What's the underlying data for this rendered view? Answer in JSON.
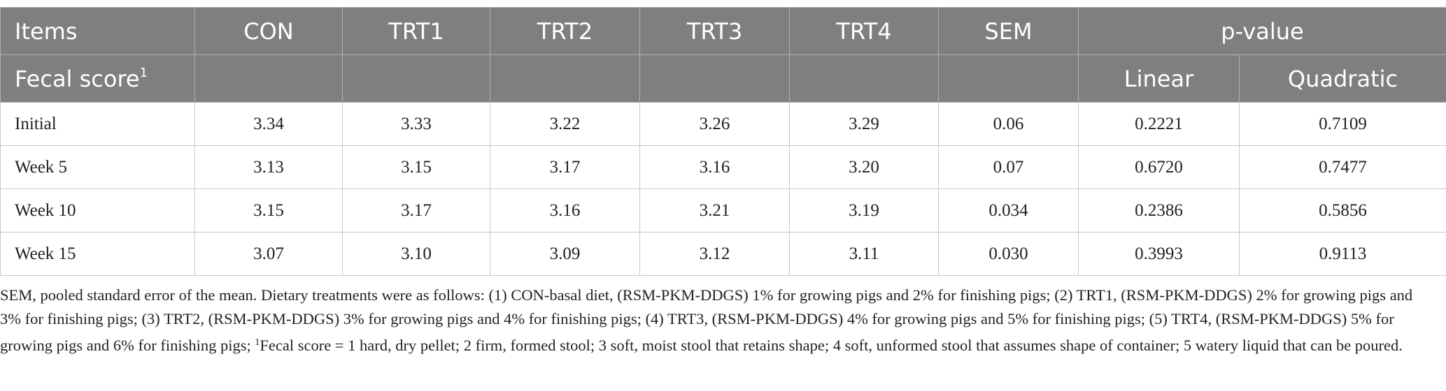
{
  "table": {
    "header": [
      "Items",
      "CON",
      "TRT1",
      "TRT2",
      "TRT3",
      "TRT4",
      "SEM",
      "p-value"
    ],
    "subheader": {
      "label": "Fecal score",
      "label_sup": "1",
      "columns": [
        "Linear",
        "Quadratic"
      ]
    },
    "rows": [
      [
        "Initial",
        "3.34",
        "3.33",
        "3.22",
        "3.26",
        "3.29",
        "0.06",
        "0.2221",
        "0.7109"
      ],
      [
        "Week 5",
        "3.13",
        "3.15",
        "3.17",
        "3.16",
        "3.20",
        "0.07",
        "0.6720",
        "0.7477"
      ],
      [
        "Week 10",
        "3.15",
        "3.17",
        "3.16",
        "3.21",
        "3.19",
        "0.034",
        "0.2386",
        "0.5856"
      ],
      [
        "Week 15",
        "3.07",
        "3.10",
        "3.09",
        "3.12",
        "3.11",
        "0.030",
        "0.3993",
        "0.9113"
      ]
    ]
  },
  "footnote": [
    "SEM, pooled standard error of the mean. Dietary treatments were as follows: (1) CON-basal diet, (RSM-PKM-DDGS) 1% for growing pigs and 2% for finishing pigs; (2) TRT1, (RSM-PKM-DDGS) 2% for growing pigs and 3% for finishing pigs; (3) TRT2, (RSM-PKM-DDGS) 3% for growing pigs and 4% for finishing pigs; (4) TRT3, (RSM-PKM-DDGS) 4% for growing pigs and 5% for finishing pigs; (5) TRT4, (RSM-PKM-DDGS) 5% for growing pigs and 6% for finishing pigs; ",
    "1",
    "Fecal score = 1 hard, dry pellet; 2 firm, formed stool; 3 soft, moist stool that retains shape; 4 soft, unformed stool that assumes shape of container; 5 watery liquid that can be poured."
  ]
}
